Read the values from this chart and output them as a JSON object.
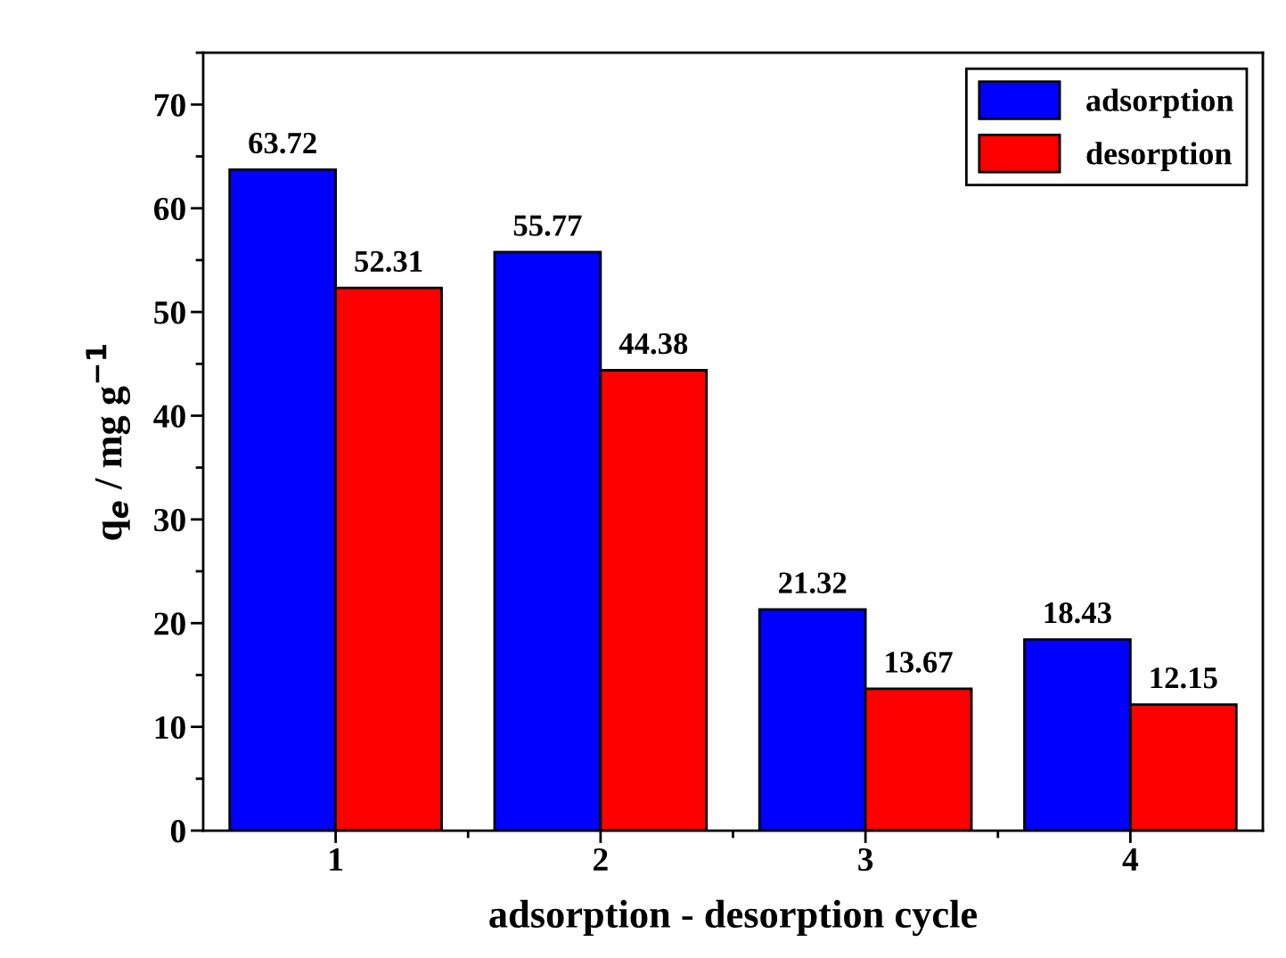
{
  "chart_data": {
    "type": "bar",
    "xlabel": "adsorption - desorption cycle",
    "ylabel": "q$_{e}$ / mg g$^{−1}$",
    "categories": [
      "1",
      "2",
      "3",
      "4"
    ],
    "series": [
      {
        "name": "adsorption",
        "color": "#0000ff",
        "values": [
          63.72,
          55.77,
          21.32,
          18.43
        ]
      },
      {
        "name": "desorption",
        "color": "#ff0000",
        "values": [
          52.31,
          44.38,
          13.67,
          12.15
        ]
      }
    ],
    "ylim": [
      0,
      75
    ],
    "yticks": [
      0,
      10,
      20,
      30,
      40,
      50,
      60,
      70
    ],
    "grid": false,
    "legend": "top right",
    "data_labels": true
  }
}
